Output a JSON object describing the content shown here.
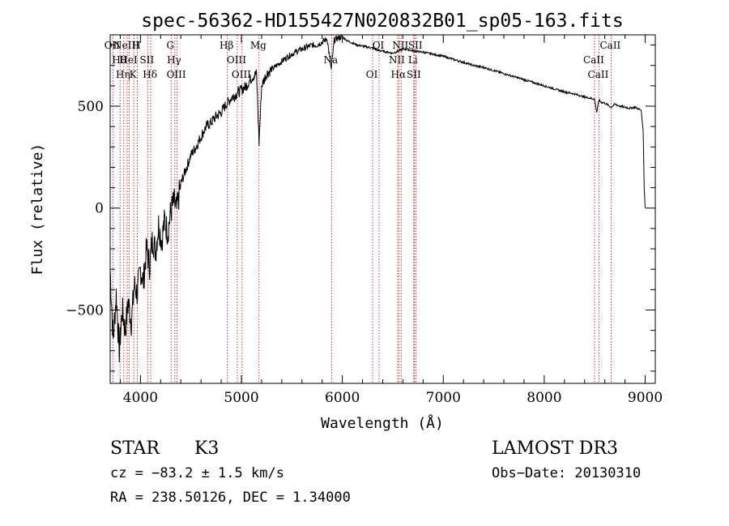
{
  "chart_data": {
    "type": "line",
    "title": "spec-56362-HD155427N020832B01_sp05-163.fits",
    "xlabel": "Wavelength (Å)",
    "ylabel": "Flux (relative)",
    "xlim": [
      3700,
      9100
    ],
    "ylim": [
      -860,
      850
    ],
    "xticks": [
      4000,
      5000,
      6000,
      7000,
      8000,
      9000
    ],
    "yticks": [
      -500,
      0,
      500
    ],
    "grid": false,
    "series": [
      {
        "name": "flux",
        "x": [
          3700,
          3730,
          3760,
          3790,
          3820,
          3850,
          3880,
          3910,
          3940,
          3970,
          4000,
          4030,
          4060,
          4090,
          4120,
          4150,
          4180,
          4210,
          4240,
          4270,
          4300,
          4330,
          4360,
          4400,
          4450,
          4500,
          4550,
          4600,
          4650,
          4700,
          4750,
          4800,
          4850,
          4900,
          4950,
          5000,
          5050,
          5100,
          5150,
          5175,
          5200,
          5250,
          5300,
          5350,
          5400,
          5450,
          5500,
          5550,
          5600,
          5650,
          5700,
          5750,
          5800,
          5850,
          5890,
          5920,
          5960,
          6000,
          6050,
          6100,
          6150,
          6200,
          6250,
          6300,
          6350,
          6400,
          6450,
          6500,
          6550,
          6600,
          6650,
          6700,
          6750,
          6800,
          6900,
          7000,
          7100,
          7200,
          7300,
          7400,
          7500,
          7600,
          7700,
          7800,
          7900,
          8000,
          8100,
          8200,
          8300,
          8400,
          8498,
          8520,
          8542,
          8560,
          8600,
          8662,
          8700,
          8750,
          8800,
          8850,
          8900,
          8960,
          8980,
          8990,
          9000
        ],
        "y": [
          -300,
          -650,
          -420,
          -700,
          -500,
          -600,
          -460,
          -560,
          -380,
          -420,
          -300,
          -360,
          -200,
          -280,
          -150,
          -210,
          -80,
          -160,
          -60,
          -120,
          -20,
          30,
          -10,
          120,
          190,
          260,
          300,
          350,
          400,
          420,
          450,
          470,
          510,
          540,
          560,
          580,
          600,
          640,
          660,
          320,
          600,
          660,
          680,
          700,
          720,
          740,
          755,
          770,
          780,
          790,
          800,
          800,
          815,
          830,
          680,
          825,
          835,
          840,
          820,
          810,
          800,
          795,
          790,
          785,
          775,
          770,
          765,
          760,
          770,
          780,
          778,
          772,
          768,
          765,
          755,
          745,
          730,
          715,
          700,
          690,
          675,
          660,
          645,
          630,
          615,
          600,
          585,
          570,
          560,
          545,
          535,
          470,
          530,
          520,
          515,
          495,
          510,
          500,
          495,
          490,
          495,
          480,
          380,
          100,
          0
        ]
      }
    ],
    "lines": [
      {
        "wl": 3727,
        "label": "OII"
      },
      {
        "wl": 3798,
        "label": "Hθ"
      },
      {
        "wl": 3835,
        "label": "Hη"
      },
      {
        "wl": 3869,
        "label": "NeIII"
      },
      {
        "wl": 3889,
        "label": "HeI"
      },
      {
        "wl": 3934,
        "label": "K"
      },
      {
        "wl": 3969,
        "label": "H"
      },
      {
        "wl": 4072,
        "label": "SII"
      },
      {
        "wl": 4102,
        "label": "Hδ"
      },
      {
        "wl": 4304,
        "label": "G"
      },
      {
        "wl": 4341,
        "label": "Hγ"
      },
      {
        "wl": 4363,
        "label": "OIII"
      },
      {
        "wl": 4861,
        "label": "Hβ"
      },
      {
        "wl": 4959,
        "label": "OIII"
      },
      {
        "wl": 5007,
        "label": "OIII"
      },
      {
        "wl": 5175,
        "label": "Mg"
      },
      {
        "wl": 5893,
        "label": "Na"
      },
      {
        "wl": 6300,
        "label": "OI"
      },
      {
        "wl": 6364,
        "label": "OI"
      },
      {
        "wl": 6548,
        "label": "NII"
      },
      {
        "wl": 6563,
        "label": "Hα"
      },
      {
        "wl": 6583,
        "label": "NII"
      },
      {
        "wl": 6707,
        "label": "Li"
      },
      {
        "wl": 6716,
        "label": "SII"
      },
      {
        "wl": 6731,
        "label": "SII"
      },
      {
        "wl": 8498,
        "label": "CaII"
      },
      {
        "wl": 8542,
        "label": "CaII"
      },
      {
        "wl": 8662,
        "label": "CaII"
      }
    ]
  },
  "info": {
    "class": "STAR",
    "subclass": "K3",
    "survey": "LAMOST DR3",
    "cz": "cz = −83.2 ± 1.5 km/s",
    "obs_date": "Obs−Date: 20130310",
    "radec": "RA = 238.50126, DEC =    1.34000"
  },
  "colors": {
    "line_marker": "#c00000",
    "spectrum": "#000000"
  }
}
